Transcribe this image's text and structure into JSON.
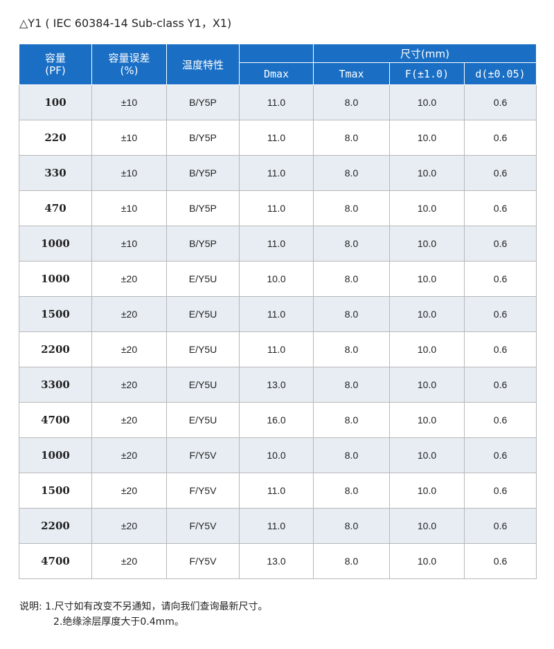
{
  "title": "△Y1 ( IEC 60384-14 Sub-class Y1，X1)",
  "table": {
    "headers": {
      "capacitance": [
        "容量",
        "(PF)"
      ],
      "tolerance": [
        "容量误差",
        "(%)"
      ],
      "temperature": "温度特性",
      "dimension": "尺寸(mm)",
      "dmax": "Dmax",
      "tmax": "Tmax",
      "f": "F(±1.0)",
      "d": "d(±0.05)"
    },
    "rows": [
      {
        "cap": "100",
        "tol": "±10",
        "temp": "B/Y5P",
        "dmax": "11.0",
        "tmax": "8.0",
        "f": "10.0",
        "d": "0.6"
      },
      {
        "cap": "220",
        "tol": "±10",
        "temp": "B/Y5P",
        "dmax": "11.0",
        "tmax": "8.0",
        "f": "10.0",
        "d": "0.6"
      },
      {
        "cap": "330",
        "tol": "±10",
        "temp": "B/Y5P",
        "dmax": "11.0",
        "tmax": "8.0",
        "f": "10.0",
        "d": "0.6"
      },
      {
        "cap": "470",
        "tol": "±10",
        "temp": "B/Y5P",
        "dmax": "11.0",
        "tmax": "8.0",
        "f": "10.0",
        "d": "0.6"
      },
      {
        "cap": "1000",
        "tol": "±10",
        "temp": "B/Y5P",
        "dmax": "11.0",
        "tmax": "8.0",
        "f": "10.0",
        "d": "0.6"
      },
      {
        "cap": "1000",
        "tol": "±20",
        "temp": "E/Y5U",
        "dmax": "10.0",
        "tmax": "8.0",
        "f": "10.0",
        "d": "0.6"
      },
      {
        "cap": "1500",
        "tol": "±20",
        "temp": "E/Y5U",
        "dmax": "11.0",
        "tmax": "8.0",
        "f": "10.0",
        "d": "0.6"
      },
      {
        "cap": "2200",
        "tol": "±20",
        "temp": "E/Y5U",
        "dmax": "11.0",
        "tmax": "8.0",
        "f": "10.0",
        "d": "0.6"
      },
      {
        "cap": "3300",
        "tol": "±20",
        "temp": "E/Y5U",
        "dmax": "13.0",
        "tmax": "8.0",
        "f": "10.0",
        "d": "0.6"
      },
      {
        "cap": "4700",
        "tol": "±20",
        "temp": "E/Y5U",
        "dmax": "16.0",
        "tmax": "8.0",
        "f": "10.0",
        "d": "0.6"
      },
      {
        "cap": "1000",
        "tol": "±20",
        "temp": "F/Y5V",
        "dmax": "10.0",
        "tmax": "8.0",
        "f": "10.0",
        "d": "0.6"
      },
      {
        "cap": "1500",
        "tol": "±20",
        "temp": "F/Y5V",
        "dmax": "11.0",
        "tmax": "8.0",
        "f": "10.0",
        "d": "0.6"
      },
      {
        "cap": "2200",
        "tol": "±20",
        "temp": "F/Y5V",
        "dmax": "11.0",
        "tmax": "8.0",
        "f": "10.0",
        "d": "0.6"
      },
      {
        "cap": "4700",
        "tol": "±20",
        "temp": "F/Y5V",
        "dmax": "13.0",
        "tmax": "8.0",
        "f": "10.0",
        "d": "0.6"
      }
    ]
  },
  "notes": {
    "label": "说明:",
    "items": [
      "1.尺寸如有改变不另通知，请向我们查询最新尺寸。",
      "2.绝缘涂层厚度大于0.4mm。"
    ]
  },
  "colors": {
    "header_bg": "#1a6fc4",
    "row_alt_bg": "#e8edf3",
    "border": "#b7b7b7"
  }
}
